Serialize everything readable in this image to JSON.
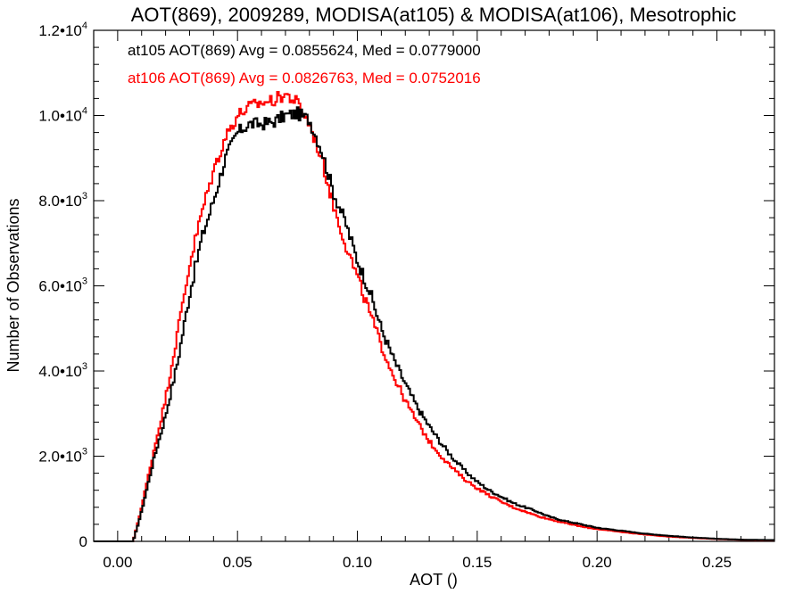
{
  "chart_data": {
    "type": "line",
    "title": "AOT(869), 2009289, MODISA(at105) & MODISA(at106), Mesotrophic",
    "xlabel": "AOT ()",
    "ylabel": "Number of Observations",
    "xlim": [
      -0.01,
      0.274
    ],
    "ylim": [
      0,
      12000
    ],
    "x_ticks": [
      0.0,
      0.05,
      0.1,
      0.15,
      0.2,
      0.25
    ],
    "x_tick_labels": [
      "0.00",
      "0.05",
      "0.10",
      "0.15",
      "0.20",
      "0.25"
    ],
    "y_ticks": [
      {
        "value": 0,
        "mantissa": "0",
        "exp": ""
      },
      {
        "value": 2000,
        "mantissa": "2.0•10",
        "exp": "3"
      },
      {
        "value": 4000,
        "mantissa": "4.0•10",
        "exp": "3"
      },
      {
        "value": 6000,
        "mantissa": "6.0•10",
        "exp": "3"
      },
      {
        "value": 8000,
        "mantissa": "8.0•10",
        "exp": "3"
      },
      {
        "value": 10000,
        "mantissa": "1.0•10",
        "exp": "4"
      },
      {
        "value": 12000,
        "mantissa": "1.2•10",
        "exp": "4"
      }
    ],
    "grid": false,
    "legend_position": "top-left",
    "annotations": [
      {
        "text": "at105 AOT(869) Avg = 0.0855624, Med = 0.0779000",
        "color": "#000000"
      },
      {
        "text": "at106 AOT(869) Avg = 0.0826763, Med = 0.0752016",
        "color": "#ff0000"
      }
    ],
    "series": [
      {
        "name": "at105",
        "color": "#000000",
        "x": [
          -0.01,
          0.0065,
          0.01,
          0.015,
          0.02,
          0.025,
          0.03,
          0.035,
          0.04,
          0.045,
          0.05,
          0.055,
          0.06,
          0.065,
          0.07,
          0.075,
          0.08,
          0.085,
          0.09,
          0.095,
          0.1,
          0.105,
          0.11,
          0.115,
          0.12,
          0.125,
          0.13,
          0.135,
          0.14,
          0.145,
          0.15,
          0.155,
          0.16,
          0.165,
          0.17,
          0.175,
          0.18,
          0.185,
          0.19,
          0.195,
          0.2,
          0.21,
          0.22,
          0.23,
          0.24,
          0.25,
          0.26,
          0.274
        ],
        "y": [
          0,
          0,
          700,
          1900,
          2950,
          4200,
          5800,
          7100,
          8000,
          9000,
          9600,
          9800,
          9800,
          9850,
          10000,
          10050,
          9900,
          9200,
          8200,
          7500,
          6600,
          5900,
          5000,
          4300,
          3700,
          3150,
          2700,
          2300,
          1950,
          1650,
          1400,
          1200,
          1050,
          900,
          800,
          700,
          580,
          500,
          440,
          380,
          320,
          250,
          180,
          130,
          90,
          60,
          40,
          30
        ]
      },
      {
        "name": "at106",
        "color": "#ff0000",
        "x": [
          -0.01,
          0.0065,
          0.01,
          0.015,
          0.02,
          0.025,
          0.03,
          0.035,
          0.04,
          0.045,
          0.05,
          0.055,
          0.06,
          0.065,
          0.07,
          0.075,
          0.08,
          0.085,
          0.09,
          0.095,
          0.1,
          0.105,
          0.11,
          0.115,
          0.12,
          0.125,
          0.13,
          0.135,
          0.14,
          0.145,
          0.15,
          0.155,
          0.16,
          0.165,
          0.17,
          0.175,
          0.18,
          0.185,
          0.19,
          0.195,
          0.2,
          0.21,
          0.22,
          0.23,
          0.24,
          0.25,
          0.26,
          0.274
        ],
        "y": [
          0,
          0,
          800,
          2100,
          3350,
          4900,
          6500,
          7700,
          8700,
          9500,
          10000,
          10200,
          10300,
          10350,
          10500,
          10300,
          9800,
          9000,
          7900,
          7000,
          6200,
          5400,
          4600,
          3900,
          3300,
          2800,
          2350,
          2000,
          1700,
          1450,
          1250,
          1080,
          930,
          800,
          700,
          600,
          520,
          450,
          390,
          330,
          290,
          220,
          160,
          110,
          80,
          55,
          35,
          25
        ]
      }
    ]
  }
}
